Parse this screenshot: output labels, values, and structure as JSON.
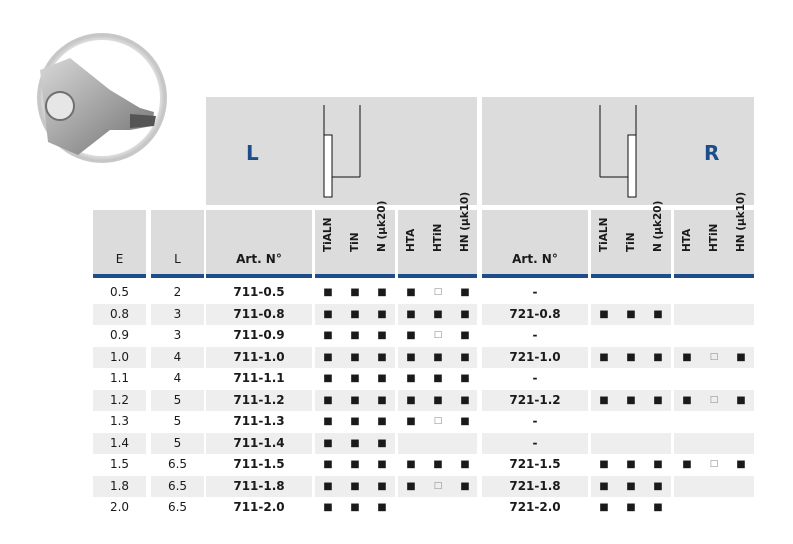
{
  "panels": {
    "left_label": "L",
    "right_label": "R"
  },
  "headers": {
    "e": "E",
    "l": "L",
    "art_left": "Art. N°",
    "art_right": "Art. N°",
    "coatings": [
      "TiALN",
      "TiN",
      "N (µk20)",
      "HTA",
      "HTiN",
      "HN (µk10)"
    ]
  },
  "rows": [
    {
      "e": "0.5",
      "l": "2",
      "art_l": "711-0.5",
      "left": [
        "f",
        "f",
        "f",
        "f",
        "h",
        "f"
      ],
      "art_r": "-",
      "right": [
        "",
        "",
        "",
        "",
        "",
        ""
      ]
    },
    {
      "e": "0.8",
      "l": "3",
      "art_l": "711-0.8",
      "left": [
        "f",
        "f",
        "f",
        "f",
        "f",
        "f"
      ],
      "art_r": "721-0.8",
      "right": [
        "f",
        "f",
        "f",
        "",
        "",
        ""
      ]
    },
    {
      "e": "0.9",
      "l": "3",
      "art_l": "711-0.9",
      "left": [
        "f",
        "f",
        "f",
        "f",
        "h",
        "f"
      ],
      "art_r": "-",
      "right": [
        "",
        "",
        "",
        "",
        "",
        ""
      ]
    },
    {
      "e": "1.0",
      "l": "4",
      "art_l": "711-1.0",
      "left": [
        "f",
        "f",
        "f",
        "f",
        "f",
        "f"
      ],
      "art_r": "721-1.0",
      "right": [
        "f",
        "f",
        "f",
        "f",
        "h",
        "f"
      ]
    },
    {
      "e": "1.1",
      "l": "4",
      "art_l": "711-1.1",
      "left": [
        "f",
        "f",
        "f",
        "f",
        "f",
        "f"
      ],
      "art_r": "-",
      "right": [
        "",
        "",
        "",
        "",
        "",
        ""
      ]
    },
    {
      "e": "1.2",
      "l": "5",
      "art_l": "711-1.2",
      "left": [
        "f",
        "f",
        "f",
        "f",
        "f",
        "f"
      ],
      "art_r": "721-1.2",
      "right": [
        "f",
        "f",
        "f",
        "f",
        "h",
        "f"
      ]
    },
    {
      "e": "1.3",
      "l": "5",
      "art_l": "711-1.3",
      "left": [
        "f",
        "f",
        "f",
        "f",
        "h",
        "f"
      ],
      "art_r": "-",
      "right": [
        "",
        "",
        "",
        "",
        "",
        ""
      ]
    },
    {
      "e": "1.4",
      "l": "5",
      "art_l": "711-1.4",
      "left": [
        "f",
        "f",
        "f",
        "",
        "",
        ""
      ],
      "art_r": "-",
      "right": [
        "",
        "",
        "",
        "",
        "",
        ""
      ]
    },
    {
      "e": "1.5",
      "l": "6.5",
      "art_l": "711-1.5",
      "left": [
        "f",
        "f",
        "f",
        "f",
        "f",
        "f"
      ],
      "art_r": "721-1.5",
      "right": [
        "f",
        "f",
        "f",
        "f",
        "h",
        "f"
      ]
    },
    {
      "e": "1.8",
      "l": "6.5",
      "art_l": "711-1.8",
      "left": [
        "f",
        "f",
        "f",
        "f",
        "h",
        "f"
      ],
      "art_r": "721-1.8",
      "right": [
        "f",
        "f",
        "f",
        "",
        "",
        ""
      ]
    },
    {
      "e": "2.0",
      "l": "6.5",
      "art_l": "711-2.0",
      "left": [
        "f",
        "f",
        "f",
        "",
        "",
        ""
      ],
      "art_r": "721-2.0",
      "right": [
        "f",
        "f",
        "f",
        "",
        "",
        ""
      ]
    }
  ],
  "symbols": {
    "f": "■",
    "h": "□"
  },
  "colors": {
    "accent": "#1e4d8c",
    "header_bg": "#dcdcdc",
    "row_alt": "#eeeeee"
  }
}
